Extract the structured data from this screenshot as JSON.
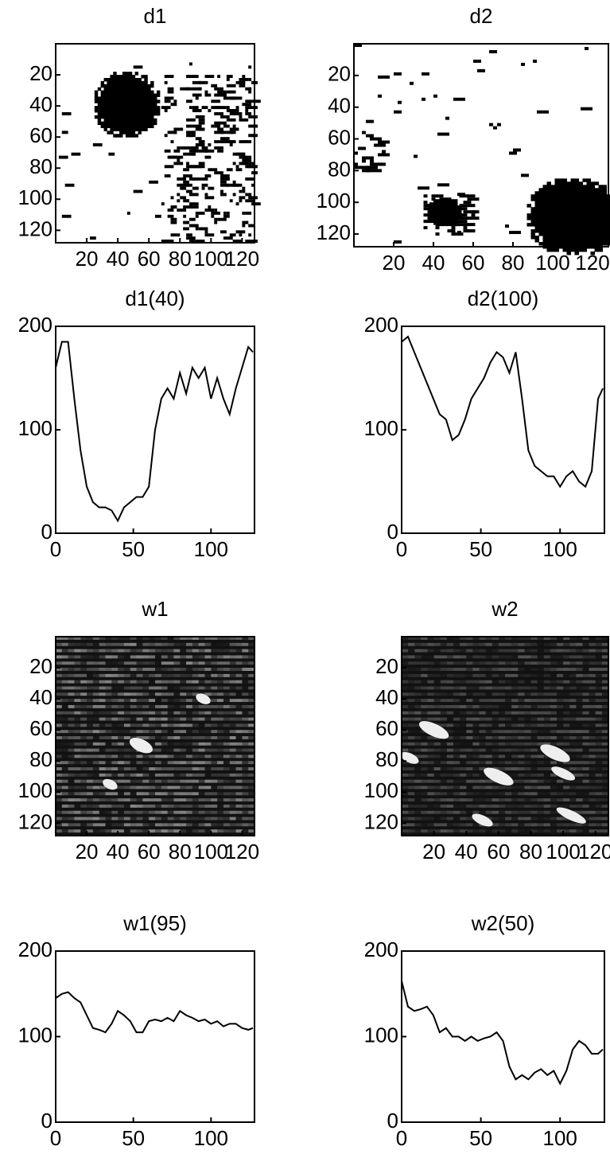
{
  "chart_data": [
    {
      "type": "image",
      "title": "d1",
      "xlim": [
        0,
        128
      ],
      "ylim": [
        0,
        128
      ],
      "y_reversed": true,
      "xticks": [
        20,
        40,
        60,
        80,
        100,
        120
      ],
      "yticks": [
        20,
        40,
        60,
        80,
        100,
        120
      ]
    },
    {
      "type": "image",
      "title": "d2",
      "xlim": [
        0,
        128
      ],
      "ylim": [
        0,
        128
      ],
      "y_reversed": true,
      "xticks": [
        20,
        40,
        60,
        80,
        100,
        120
      ],
      "yticks": [
        20,
        40,
        60,
        80,
        100,
        120
      ]
    },
    {
      "type": "line",
      "title": "d1(40)",
      "xlim": [
        0,
        128
      ],
      "ylim": [
        0,
        200
      ],
      "xticks": [
        0,
        50,
        100
      ],
      "yticks": [
        0,
        100,
        200
      ],
      "color": "#000000",
      "x": [
        0,
        4,
        8,
        12,
        16,
        20,
        24,
        28,
        32,
        36,
        40,
        44,
        48,
        52,
        56,
        60,
        64,
        68,
        72,
        76,
        80,
        84,
        88,
        92,
        96,
        100,
        104,
        108,
        112,
        116,
        120,
        124,
        127
      ],
      "values": [
        160,
        185,
        185,
        130,
        80,
        45,
        30,
        25,
        25,
        22,
        12,
        25,
        30,
        35,
        35,
        45,
        100,
        130,
        140,
        130,
        155,
        135,
        160,
        150,
        160,
        130,
        150,
        130,
        115,
        140,
        160,
        180,
        175
      ]
    },
    {
      "type": "line",
      "title": "d2(100)",
      "xlim": [
        0,
        128
      ],
      "ylim": [
        0,
        200
      ],
      "xticks": [
        0,
        50,
        100
      ],
      "yticks": [
        0,
        100,
        200
      ],
      "color": "#000000",
      "x": [
        0,
        4,
        8,
        12,
        16,
        20,
        24,
        28,
        32,
        36,
        40,
        44,
        48,
        52,
        56,
        60,
        64,
        68,
        72,
        76,
        80,
        84,
        88,
        92,
        96,
        100,
        104,
        108,
        112,
        116,
        120,
        124,
        127
      ],
      "values": [
        185,
        190,
        175,
        160,
        145,
        130,
        115,
        110,
        90,
        95,
        110,
        130,
        140,
        150,
        165,
        175,
        170,
        155,
        175,
        130,
        80,
        65,
        60,
        55,
        55,
        45,
        55,
        60,
        50,
        45,
        60,
        130,
        140
      ]
    },
    {
      "type": "image",
      "title": "w1",
      "xlim": [
        0,
        128
      ],
      "ylim": [
        0,
        128
      ],
      "y_reversed": true,
      "xticks": [
        20,
        40,
        60,
        80,
        100,
        120
      ],
      "yticks": [
        20,
        40,
        60,
        80,
        100,
        120
      ]
    },
    {
      "type": "image",
      "title": "w2",
      "xlim": [
        0,
        128
      ],
      "ylim": [
        0,
        128
      ],
      "y_reversed": true,
      "xticks": [
        20,
        40,
        60,
        80,
        100,
        120
      ],
      "yticks": [
        20,
        40,
        60,
        80,
        100,
        120
      ]
    },
    {
      "type": "line",
      "title": "w1(95)",
      "xlim": [
        0,
        128
      ],
      "ylim": [
        0,
        200
      ],
      "xticks": [
        0,
        50,
        100
      ],
      "yticks": [
        0,
        100,
        200
      ],
      "color": "#000000",
      "x": [
        0,
        4,
        8,
        12,
        16,
        20,
        24,
        28,
        32,
        36,
        40,
        44,
        48,
        52,
        56,
        60,
        64,
        68,
        72,
        76,
        80,
        84,
        88,
        92,
        96,
        100,
        104,
        108,
        112,
        116,
        120,
        124,
        127
      ],
      "values": [
        145,
        150,
        152,
        145,
        140,
        125,
        110,
        108,
        105,
        115,
        130,
        125,
        118,
        105,
        105,
        118,
        120,
        118,
        122,
        118,
        130,
        125,
        122,
        118,
        120,
        115,
        118,
        112,
        115,
        115,
        110,
        108,
        110
      ]
    },
    {
      "type": "line",
      "title": "w2(50)",
      "xlim": [
        0,
        128
      ],
      "ylim": [
        0,
        200
      ],
      "xticks": [
        0,
        50,
        100
      ],
      "yticks": [
        0,
        100,
        200
      ],
      "color": "#000000",
      "x": [
        0,
        4,
        8,
        12,
        16,
        20,
        24,
        28,
        32,
        36,
        40,
        44,
        48,
        52,
        56,
        60,
        64,
        68,
        72,
        76,
        80,
        84,
        88,
        92,
        96,
        100,
        104,
        108,
        112,
        116,
        120,
        124,
        127
      ],
      "values": [
        165,
        135,
        130,
        132,
        135,
        125,
        105,
        110,
        100,
        100,
        95,
        100,
        95,
        98,
        100,
        105,
        95,
        65,
        50,
        55,
        50,
        58,
        62,
        55,
        60,
        45,
        60,
        85,
        95,
        90,
        80,
        80,
        85
      ]
    }
  ]
}
